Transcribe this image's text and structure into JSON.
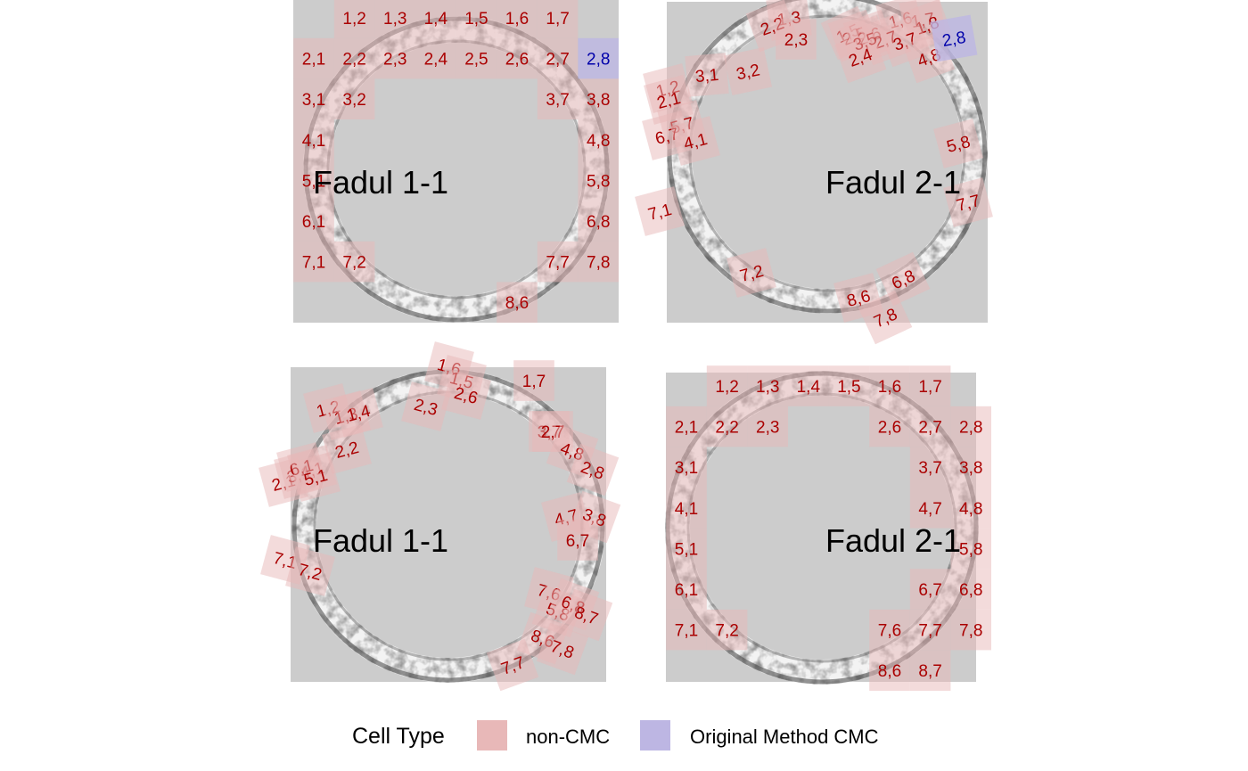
{
  "legend": {
    "title": "Cell Type",
    "items": [
      {
        "label": "non-CMC",
        "color": "#e8b8b8"
      },
      {
        "label": "Original Method CMC",
        "color": "#bdb6e3"
      }
    ]
  },
  "colors": {
    "panel_bg": "#cccccc",
    "cell_label": "#aa0000",
    "cmc_label": "#0000aa",
    "non_cmc_fill": "#e8b8b8",
    "cmc_fill": "#bdb6e3"
  },
  "panels": [
    {
      "name": "top-left",
      "title": "Fadul 1-1",
      "cells": [
        {
          "label": "1,2"
        },
        {
          "label": "1,3"
        },
        {
          "label": "1,4"
        },
        {
          "label": "1,5"
        },
        {
          "label": "1,6"
        },
        {
          "label": "1,7"
        },
        {
          "label": "2,1"
        },
        {
          "label": "2,2"
        },
        {
          "label": "2,3"
        },
        {
          "label": "2,4"
        },
        {
          "label": "2,5"
        },
        {
          "label": "2,6"
        },
        {
          "label": "2,7"
        },
        {
          "label": "2,8",
          "type": "cmc"
        },
        {
          "label": "3,1"
        },
        {
          "label": "3,2"
        },
        {
          "label": "3,7"
        },
        {
          "label": "3,8"
        },
        {
          "label": "4,1"
        },
        {
          "label": "4,8"
        },
        {
          "label": "5,1"
        },
        {
          "label": "5,8"
        },
        {
          "label": "6,1"
        },
        {
          "label": "6,8"
        },
        {
          "label": "7,1"
        },
        {
          "label": "7,2"
        },
        {
          "label": "7,7"
        },
        {
          "label": "7,8"
        },
        {
          "label": "8,6"
        }
      ]
    },
    {
      "name": "top-right",
      "title": "Fadul 2-1",
      "cells": [
        {
          "label": "1,3"
        },
        {
          "label": "2,2"
        },
        {
          "label": "2,3"
        },
        {
          "label": "1,5"
        },
        {
          "label": "1,6"
        },
        {
          "label": "1,7"
        },
        {
          "label": "1,8"
        },
        {
          "label": "2,5"
        },
        {
          "label": "2,6"
        },
        {
          "label": "2,7"
        },
        {
          "label": "3,5"
        },
        {
          "label": "3,7"
        },
        {
          "label": "2,4"
        },
        {
          "label": "4,8"
        },
        {
          "label": "2,8",
          "type": "cmc"
        },
        {
          "label": "3,1"
        },
        {
          "label": "3,2"
        },
        {
          "label": "1,2"
        },
        {
          "label": "2,1"
        },
        {
          "label": "5,7"
        },
        {
          "label": "6,7"
        },
        {
          "label": "4,1"
        },
        {
          "label": "5,8"
        },
        {
          "label": "7,1"
        },
        {
          "label": "7,7"
        },
        {
          "label": "7,2"
        },
        {
          "label": "6,8"
        },
        {
          "label": "8,6"
        },
        {
          "label": "7,8"
        }
      ]
    },
    {
      "name": "bottom-left",
      "title": "Fadul 1-1",
      "cells": [
        {
          "label": "1,6"
        },
        {
          "label": "1,5"
        },
        {
          "label": "2,6"
        },
        {
          "label": "2,3"
        },
        {
          "label": "1,7"
        },
        {
          "label": "1,2"
        },
        {
          "label": "1,3"
        },
        {
          "label": "1,4"
        },
        {
          "label": "2,2"
        },
        {
          "label": "2,1"
        },
        {
          "label": "3,1"
        },
        {
          "label": "4,1"
        },
        {
          "label": "6,1"
        },
        {
          "label": "5,1"
        },
        {
          "label": "3,7"
        },
        {
          "label": "2,7"
        },
        {
          "label": "4,8"
        },
        {
          "label": "2,8"
        },
        {
          "label": "4,7"
        },
        {
          "label": "3,8"
        },
        {
          "label": "6,7"
        },
        {
          "label": "7,1"
        },
        {
          "label": "7,2"
        },
        {
          "label": "7,6"
        },
        {
          "label": "5,8"
        },
        {
          "label": "6,8"
        },
        {
          "label": "8,7"
        },
        {
          "label": "8,6"
        },
        {
          "label": "7,8"
        },
        {
          "label": "7,7"
        }
      ]
    },
    {
      "name": "bottom-right",
      "title": "Fadul 2-1",
      "cells": [
        {
          "label": "1,2"
        },
        {
          "label": "1,3"
        },
        {
          "label": "1,4"
        },
        {
          "label": "1,5"
        },
        {
          "label": "1,6"
        },
        {
          "label": "1,7"
        },
        {
          "label": "2,1"
        },
        {
          "label": "2,2"
        },
        {
          "label": "2,3"
        },
        {
          "label": "2,6"
        },
        {
          "label": "2,7"
        },
        {
          "label": "2,8"
        },
        {
          "label": "3,1"
        },
        {
          "label": "3,7"
        },
        {
          "label": "3,8"
        },
        {
          "label": "4,1"
        },
        {
          "label": "4,7"
        },
        {
          "label": "4,8"
        },
        {
          "label": "5,1"
        },
        {
          "label": "5,8"
        },
        {
          "label": "6,1"
        },
        {
          "label": "6,7"
        },
        {
          "label": "6,8"
        },
        {
          "label": "7,1"
        },
        {
          "label": "7,2"
        },
        {
          "label": "7,6"
        },
        {
          "label": "7,7"
        },
        {
          "label": "7,8"
        },
        {
          "label": "8,6"
        },
        {
          "label": "8,7"
        }
      ]
    }
  ]
}
